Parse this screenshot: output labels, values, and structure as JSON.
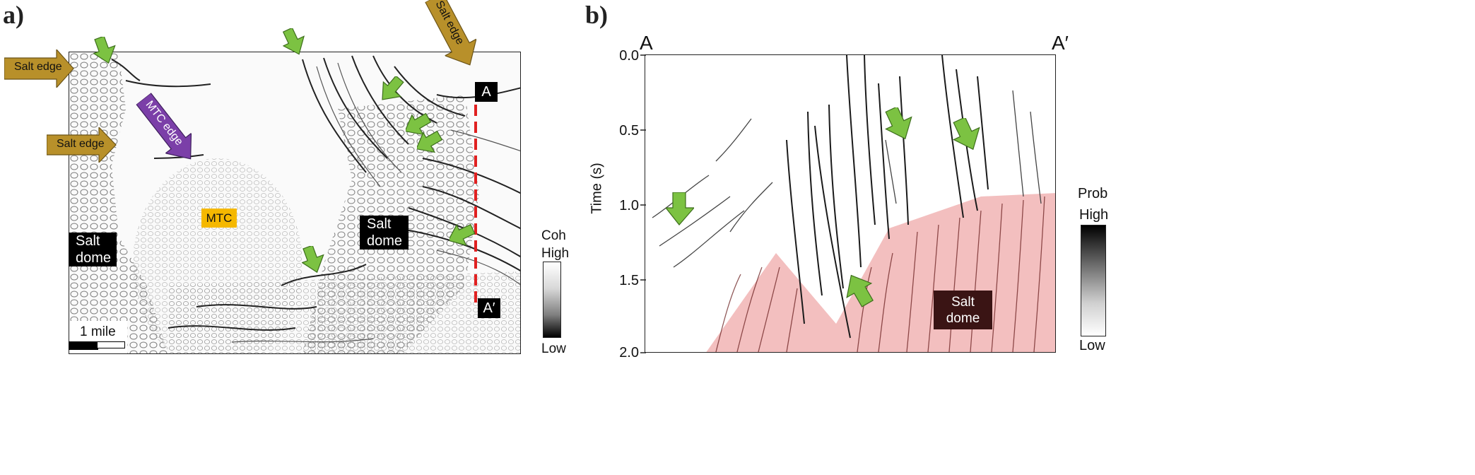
{
  "panel_a": {
    "label": "a)",
    "salt_edge_top": "Salt edge",
    "salt_edge_left": "Salt edge",
    "salt_edge_right": "Salt edge",
    "mtc_edge": "MTC edge",
    "mtc": "MTC",
    "salt_dome_left_line1": "Salt",
    "salt_dome_left_line2": "dome",
    "salt_dome_center_line1": "Salt",
    "salt_dome_center_line2": "dome",
    "point_a": "A",
    "point_a_prime": "A′",
    "scale_label": "1 mile",
    "colorbar": {
      "title": "Coh",
      "high": "High",
      "low": "Low"
    }
  },
  "panel_b": {
    "label": "b)",
    "point_a": "A",
    "point_a_prime": "A′",
    "ylabel": "Time (s)",
    "yticks": [
      "0.0",
      "0.5",
      "1.0",
      "1.5",
      "2.0"
    ],
    "salt_dome_line1": "Salt",
    "salt_dome_line2": "dome",
    "colorbar": {
      "title": "Prob",
      "high": "High",
      "low": "Low"
    }
  },
  "colors": {
    "salt_edge_arrow": "#b8902a",
    "mtc_edge_arrow": "#7b3fa8",
    "green_arrow": "#7cc242",
    "mtc_box": "#f5b800",
    "section_line": "#e02020",
    "salt_region": "#f2b8b8",
    "salt_box": "#3a1414"
  }
}
